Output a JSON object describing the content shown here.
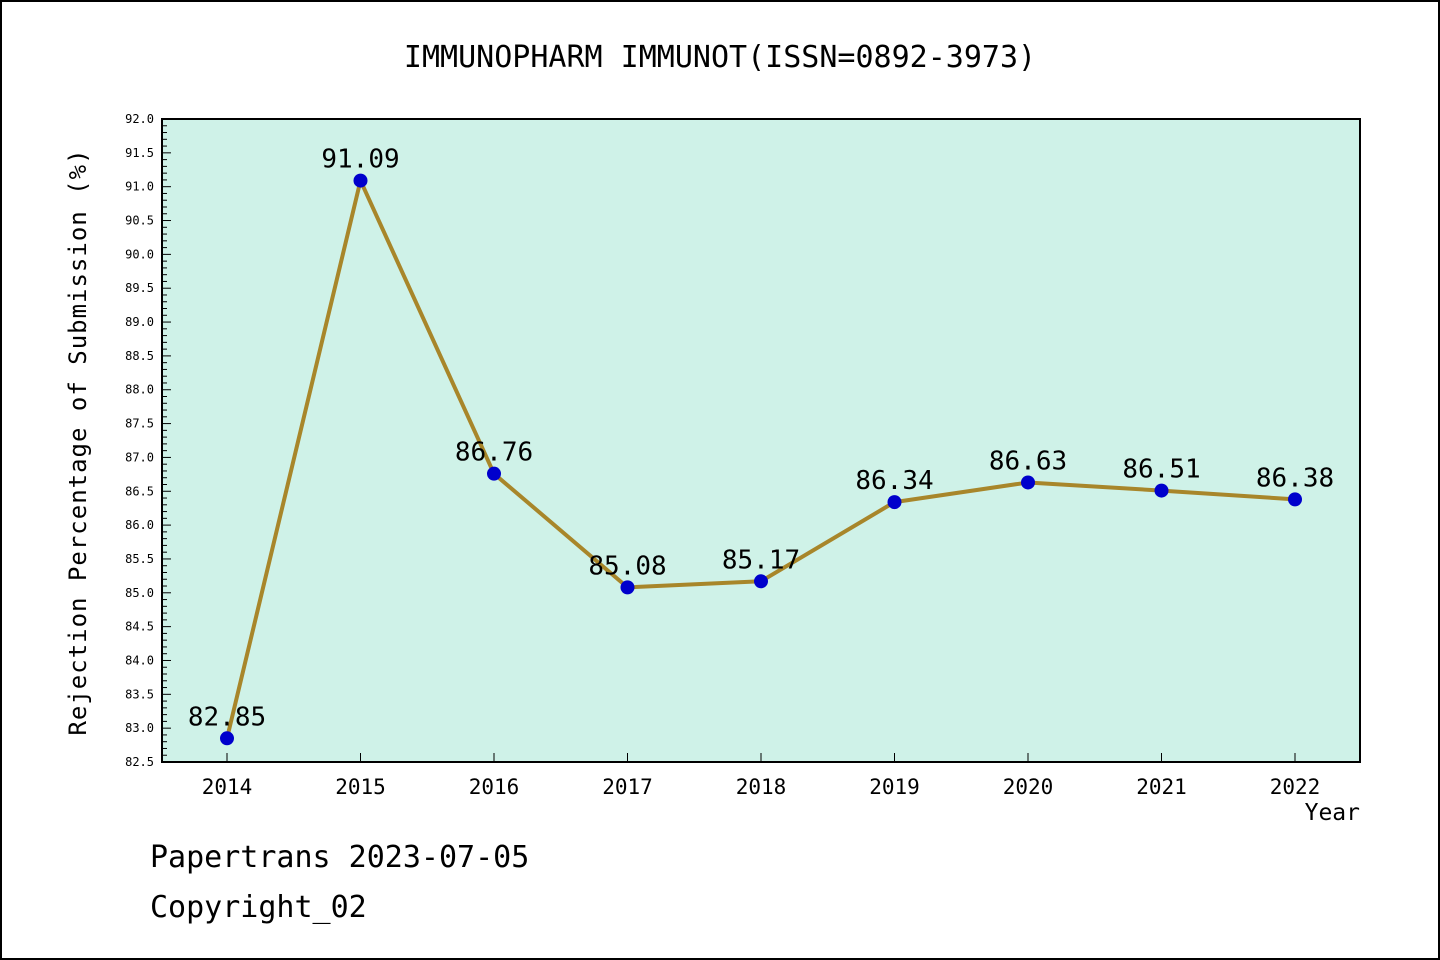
{
  "page": {
    "footer_line1": "Papertrans 2023-07-05",
    "footer_line2": "Copyright_02"
  },
  "chart_data": {
    "type": "line",
    "title": "IMMUNOPHARM IMMUNOT(ISSN=0892-3973)",
    "xlabel": "Year",
    "ylabel": "Rejection Percentage of Submission (%)",
    "categories": [
      2014,
      2015,
      2016,
      2017,
      2018,
      2019,
      2020,
      2021,
      2022
    ],
    "values": [
      82.85,
      91.09,
      86.76,
      85.08,
      85.17,
      86.34,
      86.63,
      86.51,
      86.38
    ],
    "ylim": [
      82.5,
      92.0
    ],
    "ytick_step": 0.5,
    "yminor_step": 0.1,
    "grid": false,
    "legend": "none",
    "colors": {
      "line": "#a8862a",
      "marker": "#0000cc",
      "plot_bg": "#cff2e8",
      "page_bg": "#ffffff",
      "border": "#000000"
    }
  }
}
